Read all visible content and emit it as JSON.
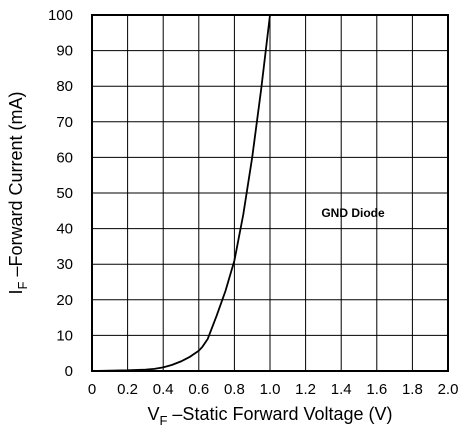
{
  "chart_data": {
    "type": "line",
    "xlabel_main": "V",
    "xlabel_sub": "F",
    "xlabel_rest": " –Static Forward Voltage (V)",
    "ylabel_main": "I",
    "ylabel_sub": "F",
    "ylabel_rest": " –Forward Current (mA)",
    "xlim": [
      0,
      2.0
    ],
    "ylim": [
      0,
      100
    ],
    "x_ticks": [
      "0",
      "0.2",
      "0.4",
      "0.6",
      "0.8",
      "1.0",
      "1.2",
      "1.4",
      "1.6",
      "1.8",
      "2.0"
    ],
    "y_ticks": [
      "0",
      "10",
      "20",
      "30",
      "40",
      "50",
      "60",
      "70",
      "80",
      "90",
      "100"
    ],
    "grid": true,
    "annotation": "GND Diode",
    "series": [
      {
        "x": [
          0,
          0.1,
          0.2,
          0.3,
          0.35,
          0.4,
          0.45,
          0.5,
          0.55,
          0.6,
          0.62,
          0.65,
          0.7,
          0.75,
          0.8,
          0.85,
          0.9,
          0.95,
          1.0
        ],
        "y": [
          0,
          0.1,
          0.2,
          0.4,
          0.6,
          1.0,
          1.7,
          2.7,
          4.0,
          5.7,
          6.8,
          9.0,
          15.5,
          22.5,
          31.0,
          44.0,
          60.0,
          79.0,
          100.0
        ]
      }
    ]
  }
}
